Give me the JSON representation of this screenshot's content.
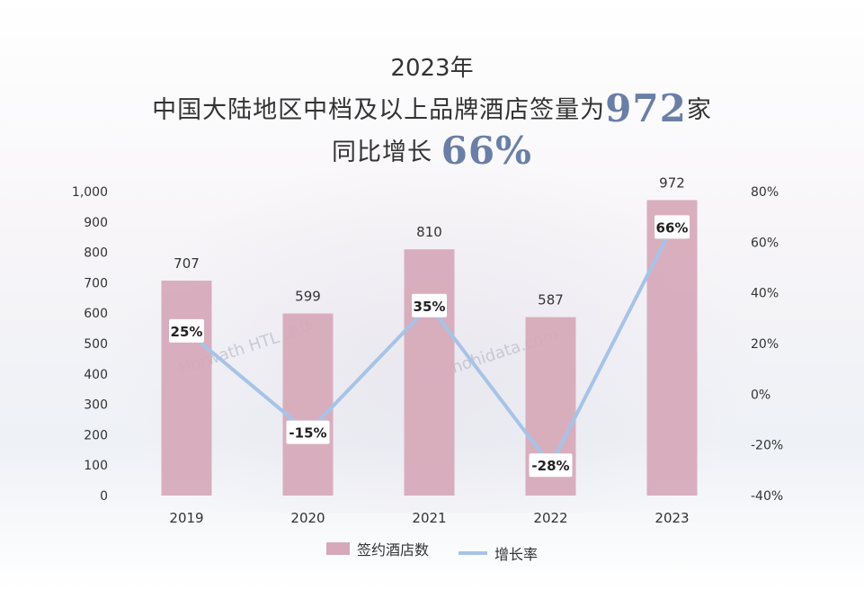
{
  "header": {
    "year_line": "2023年",
    "line2_pre": "中国大陆地区中档及以上品牌酒店签量为",
    "line2_num": "972",
    "line2_post": "家",
    "line3_pre": "同比增长",
    "line3_num": "66%"
  },
  "watermarks": [
    "Horwath HTL 浩华",
    "hohidata.com"
  ],
  "chart_data": {
    "type": "bar",
    "categories": [
      "2019",
      "2020",
      "2021",
      "2022",
      "2023"
    ],
    "series": [
      {
        "name": "签约酒店数",
        "type": "bar",
        "axis": "left",
        "values": [
          707,
          599,
          810,
          587,
          972
        ],
        "labels": [
          "707",
          "599",
          "810",
          "587",
          "972"
        ],
        "color": "#d6a8b8"
      },
      {
        "name": "增长率",
        "type": "line",
        "axis": "right",
        "values": [
          25,
          -15,
          35,
          -28,
          66
        ],
        "labels": [
          "25%",
          "-15%",
          "35%",
          "-28%",
          "66%"
        ],
        "color": "#a6c3e8"
      }
    ],
    "y_left": {
      "min": 0,
      "max": 1000,
      "ticks": [
        "0",
        "100",
        "200",
        "300",
        "400",
        "500",
        "600",
        "700",
        "800",
        "900",
        "1,000"
      ]
    },
    "y_right": {
      "min": -40,
      "max": 80,
      "ticks": [
        "-40%",
        "-20%",
        "0%",
        "20%",
        "40%",
        "60%",
        "80%"
      ]
    },
    "legend_position": "bottom-center",
    "grid": false
  }
}
